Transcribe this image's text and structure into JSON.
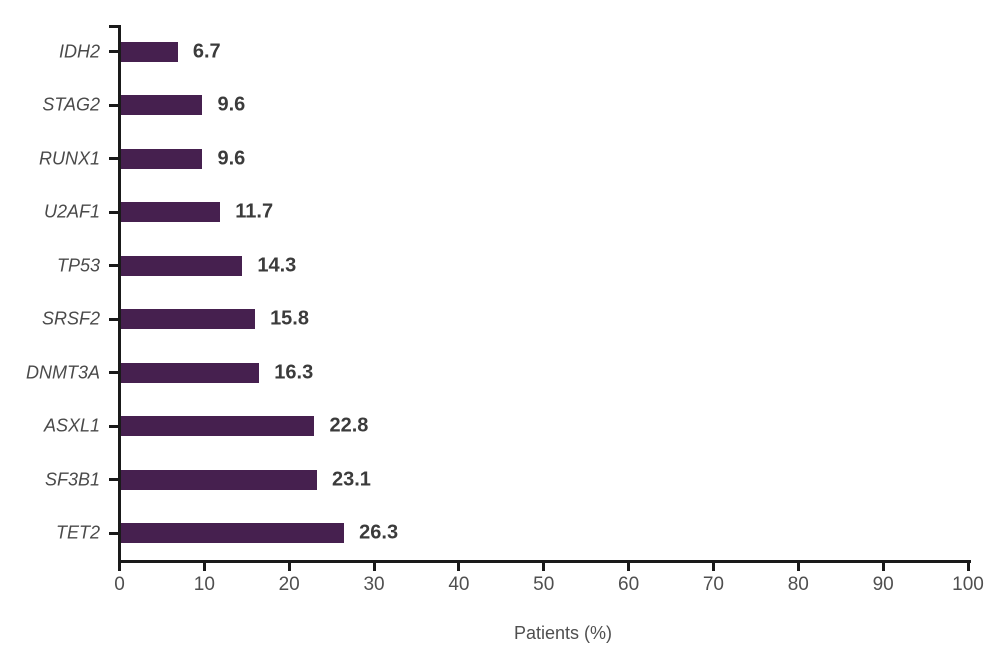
{
  "chart_data": {
    "type": "bar",
    "orientation": "horizontal",
    "title": "",
    "categories": [
      "IDH2",
      "STAG2",
      "RUNX1",
      "U2AF1",
      "TP53",
      "SRSF2",
      "DNMT3A",
      "ASXL1",
      "SF3B1",
      "TET2"
    ],
    "values": [
      6.7,
      9.6,
      9.6,
      11.7,
      14.3,
      15.8,
      16.3,
      22.8,
      23.1,
      26.3
    ],
    "value_labels": [
      "6.7",
      "9.6",
      "9.6",
      "11.7",
      "14.3",
      "15.8",
      "16.3",
      "22.8",
      "23.1",
      "26.3"
    ],
    "xlabel": "Patients (%)",
    "ylabel": "",
    "xlim": [
      0,
      100
    ],
    "x_ticks": [
      0,
      10,
      20,
      30,
      40,
      50,
      60,
      70,
      80,
      90,
      100
    ],
    "grid": false,
    "legend": "none",
    "colors": {
      "bar": "#46204f",
      "axis": "#1a1a1a",
      "category_label": "#4a4a4a",
      "value_label": "#3b3b3b",
      "tick_label": "#4f4f4f",
      "background": "#ffffff"
    }
  }
}
